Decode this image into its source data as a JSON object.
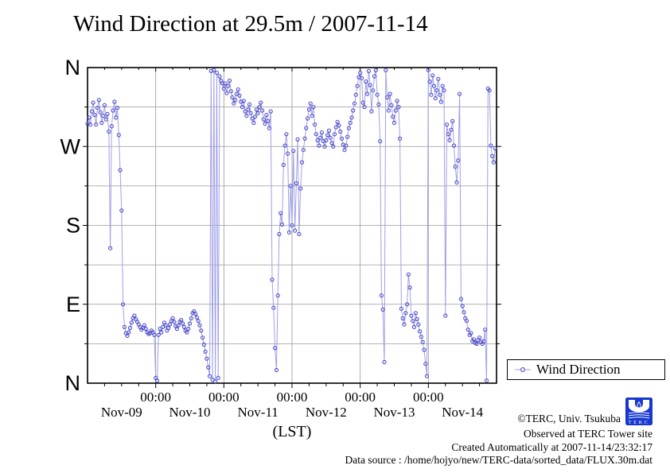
{
  "title": "Wind Direction at 29.5m / 2007-11-14",
  "legend": {
    "label": "Wind Direction"
  },
  "footer": {
    "copyright": "©TERC, Univ. Tsukuba",
    "observed": "Observed at TERC Tower site",
    "created": "Created Automatically at 2007-11-14/23:32:17",
    "source": "Data source : /home/hojyo/new/TERC-data/sorted_data/FLUX.30m.dat",
    "logo_text": "TERC"
  },
  "colors": {
    "series_line": "#a0a0e8",
    "series_marker": "#4646c8",
    "grid": "#9a9a9a",
    "frame": "#000000",
    "logo_blue": "#1838cf"
  },
  "chart_data": {
    "type": "line",
    "title": "Wind Direction at 29.5m / 2007-11-14",
    "xlabel": "(LST)",
    "x_start": "2007-11-09 00:00",
    "x_interval_minutes": 30,
    "x_range_hours": [
      0,
      144
    ],
    "x_major_tick_labels": [
      "00:00",
      "00:00",
      "00:00",
      "00:00",
      "00:00"
    ],
    "x_day_labels": [
      "Nov-09",
      "Nov-10",
      "Nov-11",
      "Nov-12",
      "Nov-13",
      "Nov-14"
    ],
    "y_unit": "degrees (compass)",
    "ylim": [
      0,
      360
    ],
    "y_major_ticks": [
      {
        "deg": 0,
        "label": "N"
      },
      {
        "deg": 90,
        "label": "E"
      },
      {
        "deg": 180,
        "label": "S"
      },
      {
        "deg": 270,
        "label": "W"
      },
      {
        "deg": 360,
        "label": "N"
      }
    ],
    "y_minor_step_deg": 45,
    "x_minor_step_hours": 6,
    "grid": true,
    "legend_position": "outside-right-bottom",
    "series": [
      {
        "name": "Wind Direction",
        "marker": "open-circle",
        "marker_color": "#4646c8",
        "line_color": "#a0a0e8",
        "values": [
          296,
          303,
          295,
          310,
          320,
          306,
          295,
          314,
          323,
          309,
          297,
          305,
          317,
          301,
          307,
          287,
          154,
          293,
          311,
          321,
          303,
          314,
          283,
          243,
          197,
          90,
          64,
          57,
          54,
          58,
          63,
          69,
          74,
          77,
          73,
          70,
          67,
          64,
          61,
          63,
          66,
          62,
          58,
          56,
          57,
          60,
          58,
          55,
          6,
          3,
          55,
          62,
          58,
          64,
          69,
          66,
          60,
          63,
          67,
          71,
          74,
          70,
          65,
          62,
          66,
          70,
          72,
          68,
          64,
          60,
          58,
          62,
          68,
          74,
          80,
          82,
          79,
          75,
          71,
          66,
          60,
          52,
          44,
          36,
          28,
          18,
          8,
          356,
          4,
          357,
          2,
          354,
          6,
          350,
          345,
          342,
          336,
          342,
          331,
          339,
          345,
          333,
          326,
          319,
          323,
          330,
          335,
          328,
          321,
          315,
          322,
          310,
          305,
          312,
          318,
          308,
          302,
          297,
          304,
          312,
          308,
          315,
          320,
          311,
          301,
          296,
          306,
          299,
          291,
          310,
          118,
          86,
          40,
          15,
          100,
          170,
          194,
          181,
          249,
          271,
          284,
          262,
          172,
          225,
          180,
          265,
          174,
          228,
          278,
          170,
          222,
          252,
          266,
          279,
          291,
          302,
          312,
          319,
          305,
          315,
          295,
          284,
          277,
          271,
          280,
          286,
          276,
          270,
          277,
          283,
          288,
          280,
          274,
          270,
          284,
          292,
          298,
          294,
          287,
          279,
          272,
          266,
          271,
          281,
          291,
          297,
          303,
          311,
          319,
          329,
          339,
          349,
          354,
          348,
          320,
          315,
          344,
          330,
          356,
          340,
          310,
          334,
          350,
          357,
          329,
          318,
          276,
          100,
          84,
          24,
          357,
          326,
          311,
          330,
          317,
          304,
          297,
          311,
          322,
          315,
          279,
          85,
          74,
          67,
          80,
          90,
          124,
          109,
          77,
          71,
          64,
          80,
          73,
          67,
          59,
          53,
          47,
          38,
          22,
          8,
          357,
          344,
          329,
          351,
          339,
          325,
          334,
          347,
          329,
          321,
          339,
          334,
          77,
          295,
          284,
          277,
          289,
          299,
          271,
          247,
          229,
          254,
          330,
          96,
          88,
          81,
          74,
          71,
          61,
          55,
          57,
          48,
          50,
          46,
          45,
          49,
          52,
          47,
          45,
          48,
          61,
          3,
          336,
          334,
          271,
          259,
          252,
          268
        ]
      }
    ]
  }
}
